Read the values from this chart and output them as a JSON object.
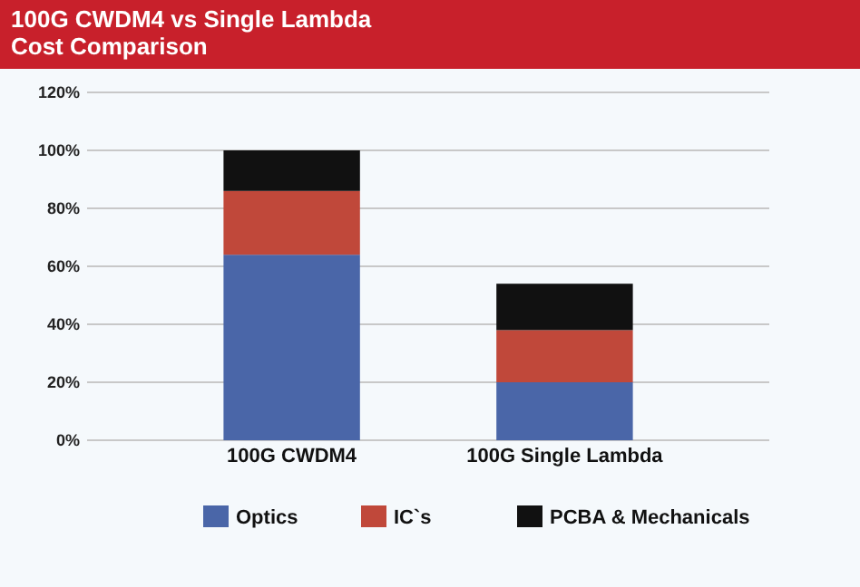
{
  "chart_data": {
    "type": "bar",
    "title": "100G CWDM4 vs Single Lambda\nCost Comparison",
    "categories": [
      "100G CWDM4",
      "100G Single Lambda"
    ],
    "stacked": true,
    "series": [
      {
        "name": "Optics",
        "color": "#4a66a8",
        "values": [
          64,
          20
        ]
      },
      {
        "name": "IC`s",
        "color": "#c0483a",
        "values": [
          22,
          18
        ]
      },
      {
        "name": "PCBA & Mechanicals",
        "color": "#111111",
        "values": [
          14,
          16
        ]
      }
    ],
    "ylim": [
      0,
      120
    ],
    "yticks": [
      {
        "value": 0,
        "label": "0%"
      },
      {
        "value": 20,
        "label": "20%"
      },
      {
        "value": 40,
        "label": "40%"
      },
      {
        "value": 60,
        "label": "60%"
      },
      {
        "value": 80,
        "label": "80%"
      },
      {
        "value": 100,
        "label": "100%"
      },
      {
        "value": 120,
        "label": "120%"
      }
    ],
    "grid": "y",
    "legend": "bottom"
  }
}
